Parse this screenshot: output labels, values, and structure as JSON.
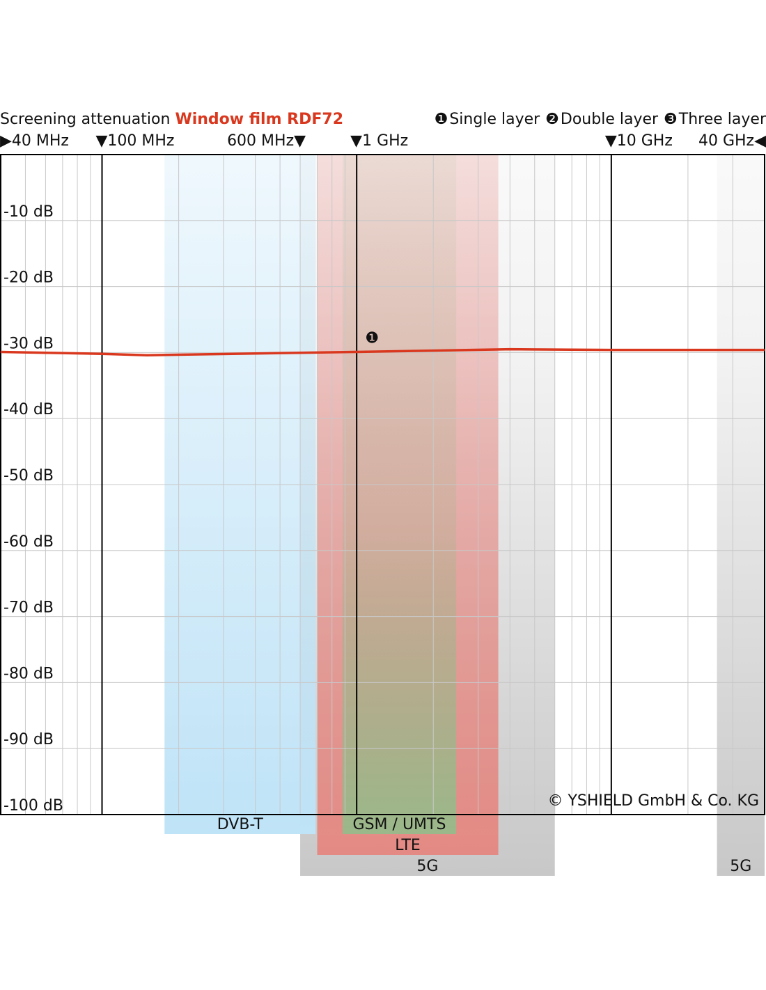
{
  "chart_data": {
    "type": "line",
    "title": "Screening attenuation",
    "title_product": "Window film RDF72",
    "title_product_color": "#d9381e",
    "xscale": "log",
    "xlim": [
      40,
      40000
    ],
    "xticks": [
      {
        "value": 40,
        "label": "▶40 MHz"
      },
      {
        "value": 100,
        "label": "▼100 MHz"
      },
      {
        "value": 600,
        "label": "600 MHz▼"
      },
      {
        "value": 1000,
        "label": "▼1 GHz"
      },
      {
        "value": 10000,
        "label": "▼10 GHz"
      },
      {
        "value": 40000,
        "label": "40 GHz◀"
      }
    ],
    "x_major_grid": [
      100,
      1000,
      10000
    ],
    "x_minor_grid": [
      50,
      60,
      70,
      80,
      90,
      200,
      300,
      400,
      500,
      600,
      700,
      800,
      900,
      2000,
      3000,
      4000,
      5000,
      6000,
      7000,
      8000,
      9000,
      20000,
      30000
    ],
    "ylim": [
      -100,
      0
    ],
    "yticks": [
      {
        "value": -10,
        "label": "-10 dB"
      },
      {
        "value": -20,
        "label": "-20 dB"
      },
      {
        "value": -30,
        "label": "-30 dB"
      },
      {
        "value": -40,
        "label": "-40 dB"
      },
      {
        "value": -50,
        "label": "-50 dB"
      },
      {
        "value": -60,
        "label": "-60 dB"
      },
      {
        "value": -70,
        "label": "-70 dB"
      },
      {
        "value": -80,
        "label": "-80 dB"
      },
      {
        "value": -90,
        "label": "-90 dB"
      },
      {
        "value": -100,
        "label": "-100 dB"
      }
    ],
    "grid": true,
    "series": [
      {
        "name": "Single layer",
        "marker": "❶",
        "color": "#d9381e",
        "x": [
          40,
          100,
          150,
          1000,
          4000,
          10000,
          40000
        ],
        "values": [
          -29.9,
          -30.2,
          -30.4,
          -29.9,
          -29.5,
          -29.6,
          -29.6
        ]
      }
    ],
    "other_layers": [
      {
        "marker": "❷",
        "name": "Double layer"
      },
      {
        "marker": "❸",
        "name": "Three layer"
      }
    ],
    "bands": [
      {
        "label": "5G",
        "range": [
          600,
          6000
        ],
        "color": "#c8c8c8"
      },
      {
        "label": "5G",
        "range": [
          26000,
          40000
        ],
        "color": "#c8c8c8"
      },
      {
        "label": "DVB-T",
        "range": [
          176,
          690
        ],
        "color": "#bfe3f7"
      },
      {
        "label": "LTE",
        "range": [
          700,
          3600
        ],
        "color": "#e48a84"
      },
      {
        "label": "GSM / UMTS",
        "range": [
          880,
          2460
        ],
        "color": "#9ab88a"
      }
    ],
    "copyright": "© YSHIELD GmbH & Co. KG"
  }
}
